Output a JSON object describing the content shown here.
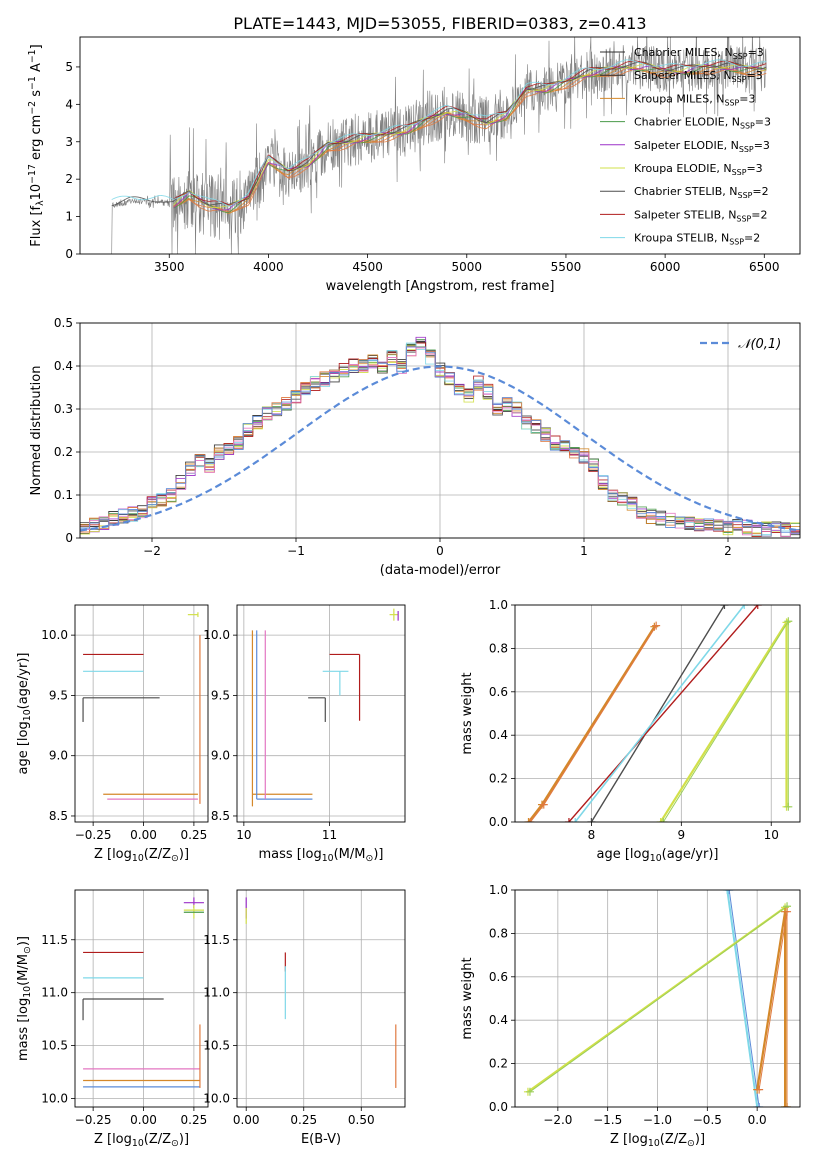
{
  "figure": {
    "title": "PLATE=1443, MJD=53055, FIBERID=0383, z=0.413"
  },
  "models": [
    {
      "label": "Chabrier MILES, N$_{SSP}$=3",
      "color": "#2c2c2c"
    },
    {
      "label": "Salpeter MILES, N$_{SSP}$=3",
      "color": "#2c2c2c"
    },
    {
      "label": "Kroupa MILES, N$_{SSP}$=3",
      "color": "#d4882a"
    },
    {
      "label": "Chabrier ELODIE, N$_{SSP}$=3",
      "color": "#4a9a4a"
    },
    {
      "label": "Salpeter ELODIE, N$_{SSP}$=3",
      "color": "#9b30c8"
    },
    {
      "label": "Kroupa ELODIE, N$_{SSP}$=3",
      "color": "#d2e04a"
    },
    {
      "label": "Chabrier STELIB, N$_{SSP}$=2",
      "color": "#4d4d4d"
    },
    {
      "label": "Salpeter STELIB, N$_{SSP}$=2",
      "color": "#b01c1c"
    },
    {
      "label": "Kroupa STELIB, N$_{SSP}$=2",
      "color": "#7fd8e8"
    }
  ],
  "chart_data": [
    {
      "id": "spectrum",
      "type": "line",
      "xlabel": "wavelength [Angstrom, rest frame]",
      "ylabel": "Flux [f$_λ$10$^{-17}$ erg cm$^{-2}$ s$^{-1}$ A$^{-1}$]",
      "xlim": [
        3050,
        6680
      ],
      "ylim": [
        0,
        5.8
      ],
      "xticks": [
        3500,
        4000,
        4500,
        5000,
        5500,
        6000,
        6500
      ],
      "yticks": [
        0,
        1,
        2,
        3,
        4,
        5
      ],
      "data_color": "#808080",
      "model_color": "#e07a40",
      "continuum": {
        "x": [
          3210,
          3300,
          3450,
          3520,
          3600,
          3700,
          3800,
          3900,
          4000,
          4100,
          4200,
          4300,
          4400,
          4500,
          4600,
          4700,
          4800,
          4900,
          5000,
          5100,
          5200,
          5300,
          5400,
          5500,
          5600,
          5700,
          5800,
          5900,
          6000,
          6100,
          6200,
          6300,
          6400,
          6510
        ],
        "y": [
          1.3,
          1.4,
          1.4,
          1.3,
          1.6,
          1.3,
          1.2,
          1.5,
          2.5,
          2.2,
          2.4,
          2.9,
          3.0,
          3.1,
          3.2,
          3.3,
          3.6,
          3.8,
          3.7,
          3.5,
          3.7,
          4.4,
          4.4,
          4.6,
          4.8,
          4.9,
          5.0,
          5.0,
          4.9,
          4.9,
          5.0,
          5.0,
          4.95,
          4.95
        ]
      },
      "legend": "top-right"
    },
    {
      "id": "residuals",
      "type": "histogram",
      "xlabel": "(data-model)/error",
      "ylabel": "Normed distribution",
      "xlim": [
        -2.5,
        2.5
      ],
      "ylim": [
        0,
        0.5
      ],
      "xticks": [
        -2,
        -1,
        0,
        1,
        2
      ],
      "yticks": [
        0,
        0.1,
        0.2,
        0.3,
        0.4,
        0.5
      ],
      "bin_edges_start": -2.5,
      "bin_width": 0.1,
      "values": [
        0.02,
        0.03,
        0.035,
        0.045,
        0.05,
        0.055,
        0.06,
        0.08,
        0.09,
        0.1,
        0.13,
        0.16,
        0.18,
        0.17,
        0.2,
        0.21,
        0.22,
        0.25,
        0.27,
        0.29,
        0.3,
        0.31,
        0.33,
        0.35,
        0.36,
        0.37,
        0.38,
        0.39,
        0.4,
        0.4,
        0.41,
        0.4,
        0.42,
        0.4,
        0.44,
        0.45,
        0.42,
        0.39,
        0.37,
        0.35,
        0.33,
        0.36,
        0.34,
        0.3,
        0.31,
        0.3,
        0.27,
        0.26,
        0.24,
        0.22,
        0.21,
        0.2,
        0.19,
        0.17,
        0.13,
        0.1,
        0.09,
        0.08,
        0.06,
        0.05,
        0.045,
        0.04,
        0.04,
        0.035,
        0.03,
        0.03,
        0.03,
        0.025,
        0.03,
        0.025,
        0.02,
        0.02,
        0.02,
        0.02,
        0.02
      ],
      "gauss_label": "$\\mathcal{N}(0,1)$",
      "gauss_color": "#5b8bd8",
      "legend": "top-right"
    },
    {
      "id": "age-vs-Z",
      "type": "errorbar",
      "xlabel": "Z [log$_{10}$(Z/Z$_\\odot$)]",
      "ylabel": "age  [log$_{10}$(age/yr)]",
      "xlim": [
        -0.34,
        0.32
      ],
      "ylim": [
        8.45,
        10.25
      ],
      "xticks": [
        -0.25,
        0.0,
        0.25
      ],
      "xticklabels": [
        "−0.25",
        "0.00",
        "0.25"
      ],
      "yticks": [
        8.5,
        9.0,
        9.5,
        10.0
      ],
      "yticklabels": [
        "8.5",
        "9.0",
        "9.5",
        "10.0"
      ],
      "points": [
        {
          "x": -0.3,
          "y": 9.48,
          "xerr": [
            0.0,
            0.38
          ],
          "yerr": [
            0.2,
            0.0
          ],
          "c": "#4d4d4d"
        },
        {
          "x": -0.3,
          "y": 9.7,
          "xerr": [
            0.0,
            0.3
          ],
          "yerr": [
            0.0,
            0.0
          ],
          "c": "#7fd8e8"
        },
        {
          "x": -0.3,
          "y": 9.84,
          "xerr": [
            0.0,
            0.3
          ],
          "yerr": [
            0.0,
            0.0
          ],
          "c": "#b01c1c"
        },
        {
          "x": -0.2,
          "y": 8.68,
          "xerr": [
            0.0,
            0.47
          ],
          "yerr": [
            0.0,
            0.0
          ],
          "c": "#d4882a"
        },
        {
          "x": -0.18,
          "y": 8.64,
          "xerr": [
            0.0,
            0.45
          ],
          "yerr": [
            0.0,
            0.0
          ],
          "c": "#e377c2"
        },
        {
          "x": 0.28,
          "y": 8.6,
          "xerr": [
            0.0,
            0.0
          ],
          "yerr": [
            0.0,
            1.4
          ],
          "c": "#e07a40"
        },
        {
          "x": 0.27,
          "y": 10.17,
          "xerr": [
            0.05,
            0.0
          ],
          "yerr": [
            0.02,
            0.02
          ],
          "c": "#d2e04a"
        }
      ]
    },
    {
      "id": "age-vs-mass",
      "type": "errorbar",
      "xlabel": "mass [log$_{10}$(M/M$_\\odot$)]",
      "ylabel": "",
      "xlim": [
        9.92,
        11.88
      ],
      "ylim": [
        8.45,
        10.25
      ],
      "xticks": [
        10,
        11
      ],
      "xticklabels": [
        "10",
        "11"
      ],
      "yticks": [
        8.5,
        9.0,
        9.5,
        10.0
      ],
      "yticklabels": [
        "8.5",
        "9.0",
        "9.5",
        "10.0"
      ],
      "points": [
        {
          "x": 10.1,
          "y": 8.68,
          "xerr": [
            0.0,
            0.7
          ],
          "yerr": [
            0.1,
            1.36
          ],
          "c": "#d4882a"
        },
        {
          "x": 10.15,
          "y": 8.64,
          "xerr": [
            0.0,
            0.65
          ],
          "yerr": [
            0.0,
            1.4
          ],
          "c": "#5b8bd8"
        },
        {
          "x": 10.25,
          "y": 8.64,
          "xerr": [
            0.0,
            0.0
          ],
          "yerr": [
            0.0,
            1.4
          ],
          "c": "#e377c2"
        },
        {
          "x": 10.95,
          "y": 9.48,
          "xerr": [
            0.2,
            0.0
          ],
          "yerr": [
            0.2,
            0.0
          ],
          "c": "#4d4d4d"
        },
        {
          "x": 11.12,
          "y": 9.7,
          "xerr": [
            0.2,
            0.1
          ],
          "yerr": [
            0.2,
            0.0
          ],
          "c": "#7fd8e8"
        },
        {
          "x": 11.35,
          "y": 9.84,
          "xerr": [
            0.35,
            0.0
          ],
          "yerr": [
            0.55,
            0.0
          ],
          "c": "#b01c1c"
        },
        {
          "x": 11.75,
          "y": 10.17,
          "xerr": [
            0.05,
            0.05
          ],
          "yerr": [
            0.05,
            0.05
          ],
          "c": "#d2e04a"
        },
        {
          "x": 11.8,
          "y": 10.17,
          "xerr": [
            0.0,
            0.0
          ],
          "yerr": [
            0.05,
            0.03
          ],
          "c": "#9b30c8"
        }
      ]
    },
    {
      "id": "massweight-vs-age",
      "type": "line",
      "xlabel": "age  [log$_{10}$(age/yr)]",
      "ylabel": "mass weight",
      "xlim": [
        7.15,
        10.32
      ],
      "ylim": [
        0,
        1
      ],
      "xticks": [
        8,
        9,
        10
      ],
      "xticklabels": [
        "8",
        "9",
        "10"
      ],
      "yticks": [
        0,
        0.2,
        0.4,
        0.6,
        0.8,
        1.0
      ],
      "yticklabels": [
        "0.0",
        "0.2",
        "0.4",
        "0.6",
        "0.8",
        "1.0"
      ],
      "series": [
        {
          "c": "#d4882a",
          "w": 2.2,
          "x": [
            7.3,
            7.45,
            8.7
          ],
          "y": [
            0.0,
            0.08,
            0.9
          ]
        },
        {
          "c": "#e07a40",
          "w": 1.2,
          "x": [
            7.32,
            7.47,
            8.72
          ],
          "y": [
            0.0,
            0.08,
            0.905
          ]
        },
        {
          "c": "#4d4d4d",
          "w": 1.4,
          "x": [
            8.0,
            9.48
          ],
          "y": [
            0.0,
            1.0
          ]
        },
        {
          "c": "#b01c1c",
          "w": 1.4,
          "x": [
            7.75,
            9.85
          ],
          "y": [
            0.0,
            1.0
          ]
        },
        {
          "c": "#7fd8e8",
          "w": 1.6,
          "x": [
            7.82,
            9.7
          ],
          "y": [
            0.0,
            1.0
          ]
        },
        {
          "c": "#d2e04a",
          "w": 2.2,
          "x": [
            8.77,
            10.17,
            10.17
          ],
          "y": [
            0.0,
            0.92,
            0.07
          ]
        },
        {
          "c": "#9ccf5a",
          "w": 1.0,
          "x": [
            8.8,
            10.19,
            10.19
          ],
          "y": [
            0.0,
            0.925,
            0.07
          ]
        }
      ]
    },
    {
      "id": "mass-vs-Z",
      "type": "errorbar",
      "xlabel": "Z [log$_{10}$(Z/Z$_\\odot$)]",
      "ylabel": "mass [log$_{10}$(M/M$_\\odot$)]",
      "xlim": [
        -0.34,
        0.32
      ],
      "ylim": [
        9.92,
        11.97
      ],
      "xticks": [
        -0.25,
        0.0,
        0.25
      ],
      "xticklabels": [
        "−0.25",
        "0.00",
        "0.25"
      ],
      "yticks": [
        10.0,
        10.5,
        11.0,
        11.5
      ],
      "yticklabels": [
        "10.0",
        "10.5",
        "11.0",
        "11.5"
      ],
      "points": [
        {
          "x": -0.3,
          "y": 10.94,
          "xerr": [
            0.0,
            0.4
          ],
          "yerr": [
            0.2,
            0.0
          ],
          "c": "#4d4d4d"
        },
        {
          "x": -0.3,
          "y": 11.14,
          "xerr": [
            0.0,
            0.3
          ],
          "yerr": [
            0.0,
            0.0
          ],
          "c": "#7fd8e8"
        },
        {
          "x": -0.3,
          "y": 11.38,
          "xerr": [
            0.0,
            0.3
          ],
          "yerr": [
            0.0,
            0.0
          ],
          "c": "#b01c1c"
        },
        {
          "x": -0.3,
          "y": 10.28,
          "xerr": [
            0.0,
            0.58
          ],
          "yerr": [
            0.0,
            0.0
          ],
          "c": "#e377c2"
        },
        {
          "x": -0.3,
          "y": 10.17,
          "xerr": [
            0.0,
            0.58
          ],
          "yerr": [
            0.0,
            0.0
          ],
          "c": "#d4882a"
        },
        {
          "x": -0.3,
          "y": 10.11,
          "xerr": [
            0.0,
            0.58
          ],
          "yerr": [
            0.0,
            0.0
          ],
          "c": "#5b8bd8"
        },
        {
          "x": 0.28,
          "y": 10.1,
          "xerr": [
            0.0,
            0.0
          ],
          "yerr": [
            0.0,
            0.6
          ],
          "c": "#e07a40"
        },
        {
          "x": 0.25,
          "y": 11.85,
          "xerr": [
            0.05,
            0.05
          ],
          "yerr": [
            0.05,
            0.05
          ],
          "c": "#9b30c8"
        },
        {
          "x": 0.25,
          "y": 11.78,
          "xerr": [
            0.05,
            0.05
          ],
          "yerr": [
            0.08,
            0.05
          ],
          "c": "#d2e04a"
        },
        {
          "x": 0.25,
          "y": 11.76,
          "xerr": [
            0.05,
            0.05
          ],
          "yerr": [
            0.0,
            0.0
          ],
          "c": "#4a9a4a"
        }
      ]
    },
    {
      "id": "mass-vs-EBV",
      "type": "errorbar",
      "xlabel": "E(B-V)",
      "ylabel": "",
      "xlim": [
        -0.04,
        0.69
      ],
      "ylim": [
        9.92,
        11.97
      ],
      "xticks": [
        0.0,
        0.25,
        0.5
      ],
      "xticklabels": [
        "0.00",
        "0.25",
        "0.50"
      ],
      "yticks": [
        10.0,
        10.5,
        11.0,
        11.5
      ],
      "yticklabels": [
        "10.0",
        "10.5",
        "11.0",
        "11.5"
      ],
      "points": [
        {
          "x": 0.0,
          "y": 11.8,
          "xerr": [
            0.0,
            0.0
          ],
          "yerr": [
            0.1,
            0.1
          ],
          "c": "#9b30c8"
        },
        {
          "x": 0.0,
          "y": 11.75,
          "xerr": [
            0.0,
            0.0
          ],
          "yerr": [
            0.1,
            0.05
          ],
          "c": "#d2e04a"
        },
        {
          "x": 0.17,
          "y": 11.2,
          "xerr": [
            0.0,
            0.0
          ],
          "yerr": [
            0.0,
            0.18
          ],
          "c": "#b01c1c"
        },
        {
          "x": 0.17,
          "y": 10.75,
          "xerr": [
            0.0,
            0.0
          ],
          "yerr": [
            0.0,
            0.5
          ],
          "c": "#7fd8e8"
        },
        {
          "x": 0.65,
          "y": 10.1,
          "xerr": [
            0.0,
            0.0
          ],
          "yerr": [
            0.0,
            0.6
          ],
          "c": "#e07a40"
        }
      ]
    },
    {
      "id": "massweight-vs-Z",
      "type": "line",
      "xlabel": "Z [log$_{10}$(Z/Z$_\\odot$)]",
      "ylabel": "mass weight",
      "xlim": [
        -2.43,
        0.43
      ],
      "ylim": [
        0,
        1
      ],
      "xticks": [
        -2.0,
        -1.5,
        -1.0,
        -0.5,
        0.0,
        0.5
      ],
      "xticklabels": [
        "−2.0",
        "−1.5",
        "−1.0",
        "−0.5",
        "0.0",
        "0.5"
      ],
      "yticks": [
        0,
        0.2,
        0.4,
        0.6,
        0.8,
        1.0
      ],
      "yticklabels": [
        "0.0",
        "0.2",
        "0.4",
        "0.6",
        "0.8",
        "1.0"
      ],
      "series": [
        {
          "c": "#7fd8e8",
          "w": 2.0,
          "x": [
            -0.3,
            0.0
          ],
          "y": [
            1.0,
            0.0
          ]
        },
        {
          "c": "#5b8bd8",
          "w": 1.0,
          "x": [
            -0.28,
            0.02
          ],
          "y": [
            1.0,
            0.0
          ]
        },
        {
          "c": "#d2e04a",
          "w": 2.2,
          "x": [
            -2.3,
            0.28,
            0.28
          ],
          "y": [
            0.07,
            0.92,
            0.0
          ]
        },
        {
          "c": "#9ccf5a",
          "w": 1.0,
          "x": [
            -2.28,
            0.3,
            0.3
          ],
          "y": [
            0.07,
            0.925,
            0.0
          ]
        },
        {
          "c": "#d4882a",
          "w": 2.2,
          "x": [
            0.0,
            0.28,
            0.28
          ],
          "y": [
            0.08,
            0.9,
            0.0
          ]
        },
        {
          "c": "#e07a40",
          "w": 1.0,
          "x": [
            0.02,
            0.3,
            0.3
          ],
          "y": [
            0.08,
            0.9,
            0.0
          ]
        }
      ]
    }
  ]
}
